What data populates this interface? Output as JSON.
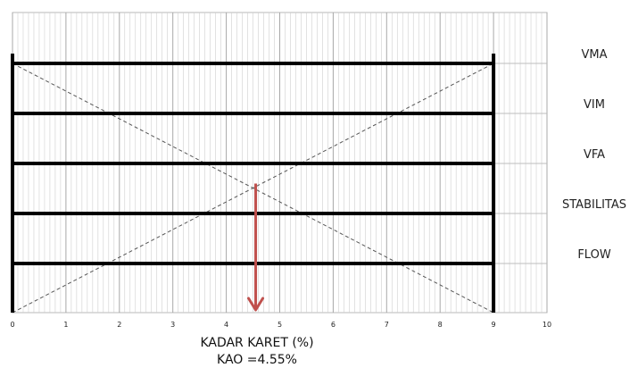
{
  "chart_data": {
    "type": "bar",
    "x_range": [
      0,
      10
    ],
    "minor_step": 0.1,
    "x_ticks": [
      "0",
      "1",
      "2",
      "3",
      "4",
      "5",
      "6",
      "7",
      "8",
      "9",
      "10"
    ],
    "rows": [
      {
        "label": "VMA",
        "range": [
          0,
          9
        ]
      },
      {
        "label": "VIM",
        "range": [
          0,
          9
        ]
      },
      {
        "label": "VFA",
        "range": [
          0,
          9
        ]
      },
      {
        "label": "STABILITAS",
        "range": [
          0,
          9
        ]
      },
      {
        "label": "FLOW",
        "range": [
          0,
          9
        ]
      }
    ],
    "dashed_lines": [
      {
        "from": [
          0,
          "top"
        ],
        "to": [
          9,
          "bottom"
        ]
      },
      {
        "from": [
          0,
          "bottom"
        ],
        "to": [
          9,
          "top"
        ]
      }
    ],
    "optimum_x": 4.55,
    "arrow_color": "#c0504d",
    "xlabel": "KADAR KARET (%)",
    "result_label": "KAO =4.55%",
    "grid": true
  }
}
